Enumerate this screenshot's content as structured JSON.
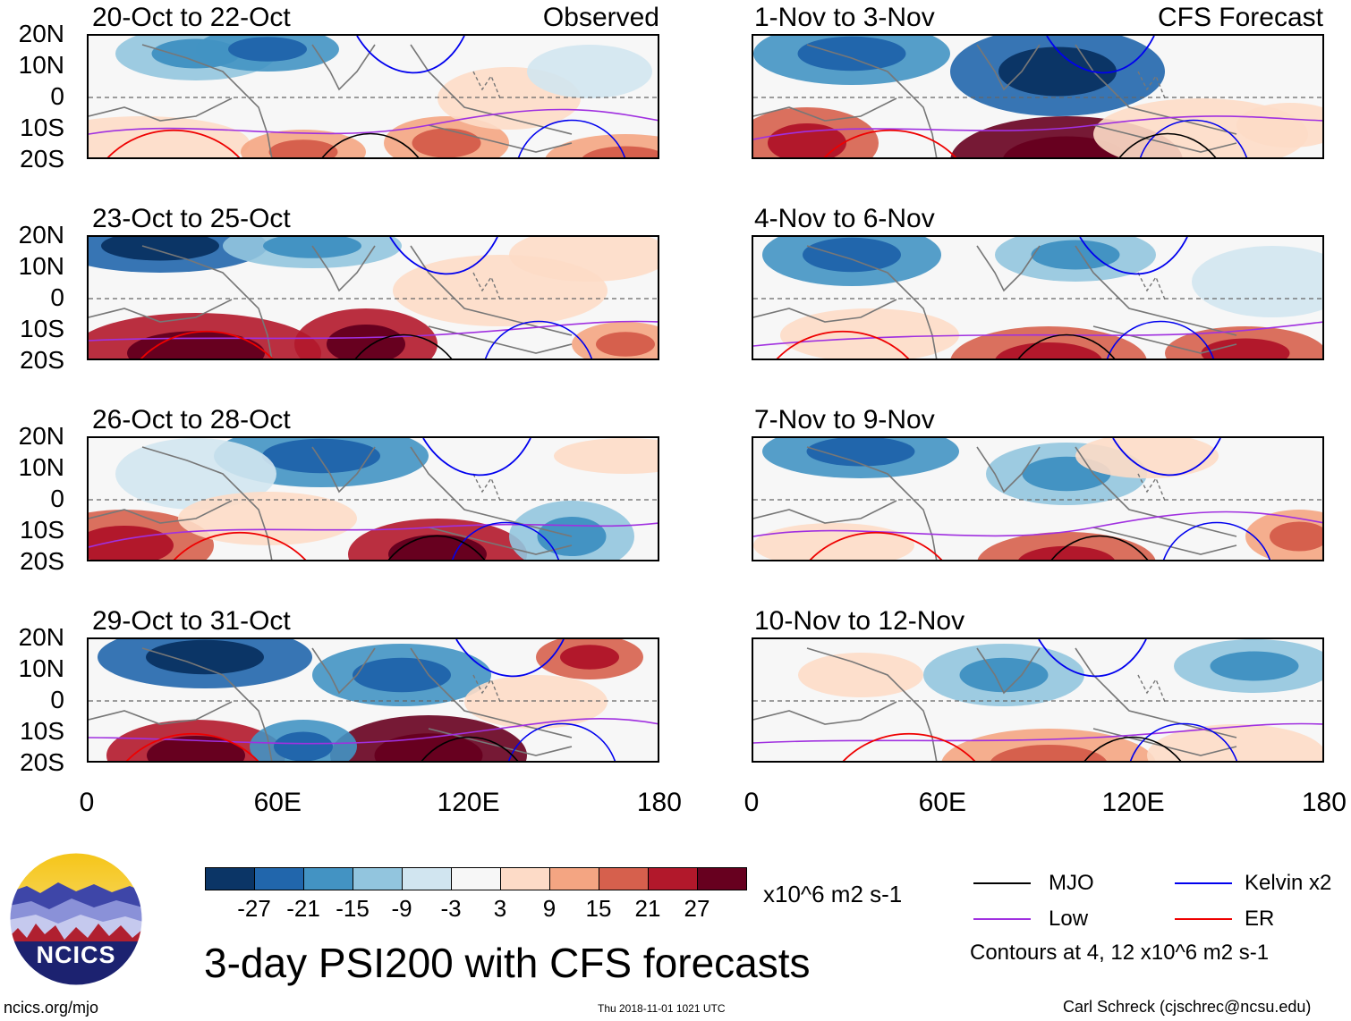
{
  "lat_labels": [
    "20N",
    "10N",
    "0",
    "10S",
    "20S"
  ],
  "lon_labels": [
    "0",
    "60E",
    "120E",
    "180"
  ],
  "observed_label": "Observed",
  "forecast_label": "CFS Forecast",
  "panels_left": [
    {
      "title": "20-Oct to 22-Oct"
    },
    {
      "title": "23-Oct to 25-Oct"
    },
    {
      "title": "26-Oct to 28-Oct"
    },
    {
      "title": "29-Oct to 31-Oct"
    }
  ],
  "panels_right": [
    {
      "title": "1-Nov to 3-Nov"
    },
    {
      "title": "4-Nov to 6-Nov"
    },
    {
      "title": "7-Nov to 9-Nov"
    },
    {
      "title": "10-Nov to 12-Nov"
    }
  ],
  "colorbar": {
    "labels": [
      "-27",
      "-21",
      "-15",
      "-9",
      "-3",
      "3",
      "9",
      "15",
      "21",
      "27"
    ],
    "colors": [
      "#0b3566",
      "#2166ac",
      "#4393c3",
      "#92c5de",
      "#d1e5f0",
      "#f7f7f7",
      "#fddbc7",
      "#f4a582",
      "#d6604d",
      "#b2182b",
      "#67001f"
    ],
    "units": "x10^6 m2 s-1"
  },
  "legend": {
    "mjo": {
      "label": "MJO",
      "color": "#000000"
    },
    "kelvin": {
      "label": "Kelvin x2",
      "color": "#0000ee"
    },
    "low": {
      "label": "Low",
      "color": "#a030e0"
    },
    "er": {
      "label": "ER",
      "color": "#ee0000"
    },
    "contours_note": "Contours at 4, 12 x10^6 m2 s-1"
  },
  "main_title": "3-day PSI200 with CFS forecasts",
  "logo_text": "NCICS",
  "footer": {
    "url": "ncics.org/mjo",
    "timestamp": "Thu 2018-11-01 1021 UTC",
    "author": "Carl Schreck (cjschrec@ncsu.edu)"
  }
}
